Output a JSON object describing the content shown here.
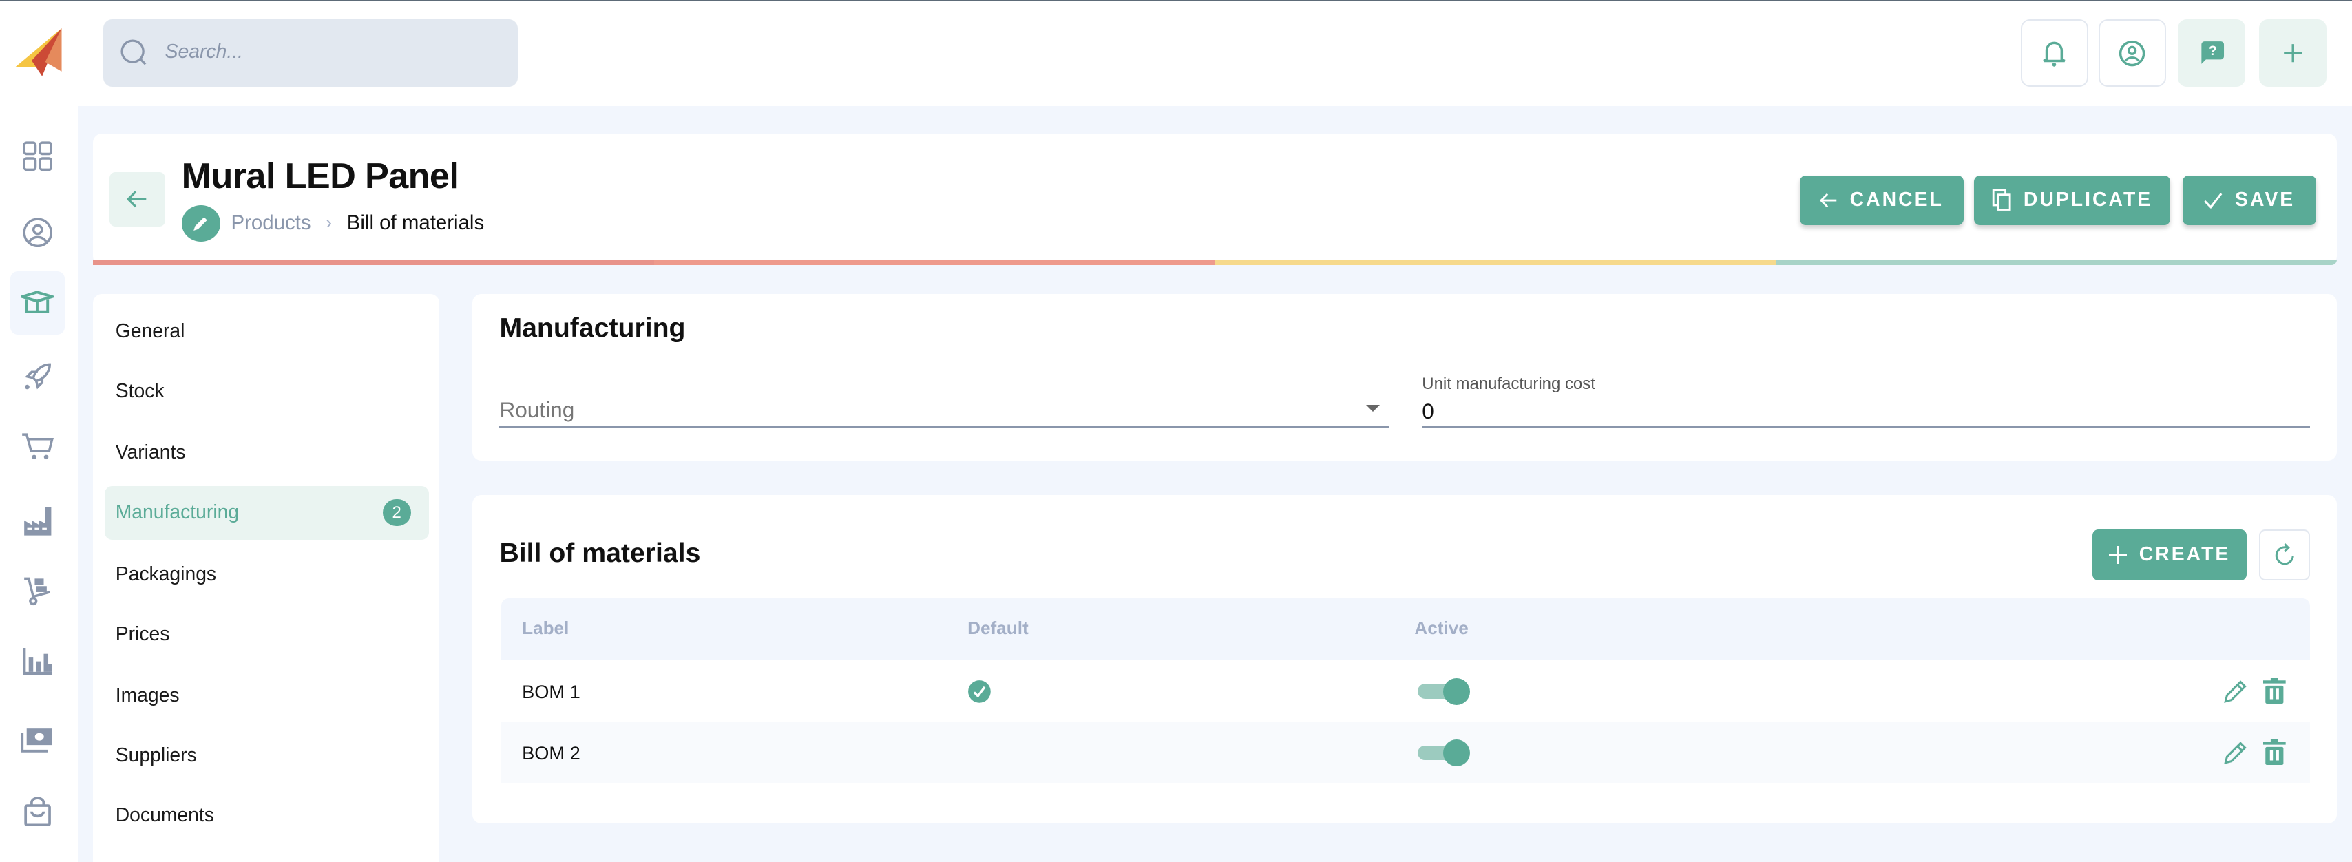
{
  "search": {
    "placeholder": "Search..."
  },
  "topbar": {
    "icons": [
      "bell-icon",
      "user-circle-icon",
      "help-chat-icon",
      "plus-icon"
    ]
  },
  "sidebar": {
    "icons": [
      "dashboard-icon",
      "user-icon",
      "box-icon",
      "rocket-icon",
      "cart-icon",
      "factory-icon",
      "hand-truck-icon",
      "bar-chart-icon",
      "money-icon",
      "shopping-bag-icon"
    ],
    "active": "box-icon"
  },
  "header": {
    "title": "Mural LED Panel",
    "breadcrumb": [
      "Products",
      "Bill of materials"
    ],
    "buttons": {
      "cancel": "CANCEL",
      "duplicate": "DUPLICATE",
      "save": "SAVE"
    },
    "progress_colors": [
      "#e8938a",
      "#ee9a8c",
      "#f6d98c",
      "#a8d3c7"
    ]
  },
  "nav": {
    "items": [
      {
        "label": "General"
      },
      {
        "label": "Stock"
      },
      {
        "label": "Variants"
      },
      {
        "label": "Manufacturing",
        "badge": "2",
        "active": true
      },
      {
        "label": "Packagings"
      },
      {
        "label": "Prices"
      },
      {
        "label": "Images"
      },
      {
        "label": "Suppliers"
      },
      {
        "label": "Documents"
      }
    ]
  },
  "manufacturing": {
    "title": "Manufacturing",
    "routing_placeholder": "Routing",
    "unit_cost_label": "Unit manufacturing cost",
    "unit_cost_value": "0"
  },
  "bom": {
    "title": "Bill of materials",
    "create": "CREATE",
    "columns": [
      "Label",
      "Default",
      "Active"
    ],
    "rows": [
      {
        "label": "BOM 1",
        "default": true,
        "active": true
      },
      {
        "label": "BOM 2",
        "default": false,
        "active": true
      }
    ]
  },
  "colors": {
    "accent": "#5aab97",
    "accent_light": "#eaf4f1",
    "background": "#f2f6fd"
  }
}
